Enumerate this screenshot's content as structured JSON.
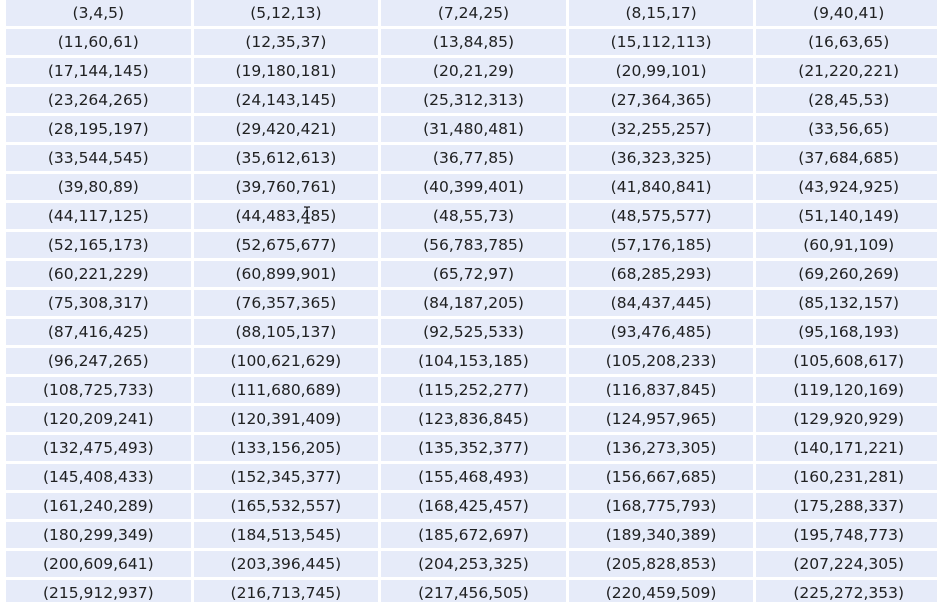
{
  "table": {
    "rows": [
      [
        "(3,4,5)",
        "(5,12,13)",
        "(7,24,25)",
        "(8,15,17)",
        "(9,40,41)"
      ],
      [
        "(11,60,61)",
        "(12,35,37)",
        "(13,84,85)",
        "(15,112,113)",
        "(16,63,65)"
      ],
      [
        "(17,144,145)",
        "(19,180,181)",
        "(20,21,29)",
        "(20,99,101)",
        "(21,220,221)"
      ],
      [
        "(23,264,265)",
        "(24,143,145)",
        "(25,312,313)",
        "(27,364,365)",
        "(28,45,53)"
      ],
      [
        "(28,195,197)",
        "(29,420,421)",
        "(31,480,481)",
        "(32,255,257)",
        "(33,56,65)"
      ],
      [
        "(33,544,545)",
        "(35,612,613)",
        "(36,77,85)",
        "(36,323,325)",
        "(37,684,685)"
      ],
      [
        "(39,80,89)",
        "(39,760,761)",
        "(40,399,401)",
        "(41,840,841)",
        "(43,924,925)"
      ],
      [
        "(44,117,125)",
        "(44,483,485)",
        "(48,55,73)",
        "(48,575,577)",
        "(51,140,149)"
      ],
      [
        "(52,165,173)",
        "(52,675,677)",
        "(56,783,785)",
        "(57,176,185)",
        "(60,91,109)"
      ],
      [
        "(60,221,229)",
        "(60,899,901)",
        "(65,72,97)",
        "(68,285,293)",
        "(69,260,269)"
      ],
      [
        "(75,308,317)",
        "(76,357,365)",
        "(84,187,205)",
        "(84,437,445)",
        "(85,132,157)"
      ],
      [
        "(87,416,425)",
        "(88,105,137)",
        "(92,525,533)",
        "(93,476,485)",
        "(95,168,193)"
      ],
      [
        "(96,247,265)",
        "(100,621,629)",
        "(104,153,185)",
        "(105,208,233)",
        "(105,608,617)"
      ],
      [
        "(108,725,733)",
        "(111,680,689)",
        "(115,252,277)",
        "(116,837,845)",
        "(119,120,169)"
      ],
      [
        "(120,209,241)",
        "(120,391,409)",
        "(123,836,845)",
        "(124,957,965)",
        "(129,920,929)"
      ],
      [
        "(132,475,493)",
        "(133,156,205)",
        "(135,352,377)",
        "(136,273,305)",
        "(140,171,221)"
      ],
      [
        "(145,408,433)",
        "(152,345,377)",
        "(155,468,493)",
        "(156,667,685)",
        "(160,231,281)"
      ],
      [
        "(161,240,289)",
        "(165,532,557)",
        "(168,425,457)",
        "(168,775,793)",
        "(175,288,337)"
      ],
      [
        "(180,299,349)",
        "(184,513,545)",
        "(185,672,697)",
        "(189,340,389)",
        "(195,748,773)"
      ],
      [
        "(200,609,641)",
        "(203,396,445)",
        "(204,253,325)",
        "(205,828,853)",
        "(207,224,305)"
      ],
      [
        "(215,912,937)",
        "(216,713,745)",
        "(217,456,505)",
        "(220,459,509)",
        "(225,272,353)"
      ]
    ]
  },
  "colors": {
    "cell_background": "#e6ebf9",
    "text": "#202122",
    "page_background": "#ffffff"
  },
  "icons": {
    "cursor": "text-cursor-icon"
  }
}
